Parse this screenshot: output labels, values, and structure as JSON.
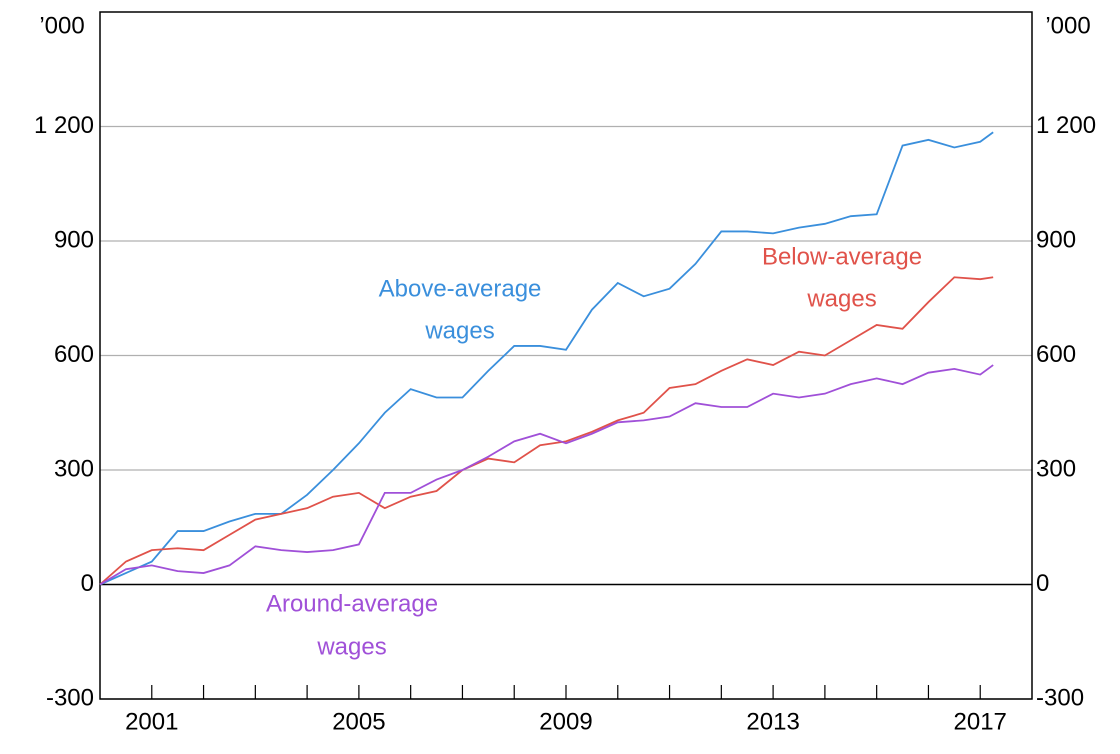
{
  "chart_data": {
    "type": "line",
    "y_unit_label": "’000",
    "y2_unit_label": "’000",
    "x": [
      2000.0,
      2000.5,
      2001.0,
      2001.5,
      2002.0,
      2002.5,
      2003.0,
      2003.5,
      2004.0,
      2004.5,
      2005.0,
      2005.5,
      2006.0,
      2006.5,
      2007.0,
      2007.5,
      2008.0,
      2008.5,
      2009.0,
      2009.5,
      2010.0,
      2010.5,
      2011.0,
      2011.5,
      2012.0,
      2012.5,
      2013.0,
      2013.5,
      2014.0,
      2014.5,
      2015.0,
      2015.5,
      2016.0,
      2016.5,
      2017.0,
      2017.25
    ],
    "xlim": [
      2000,
      2018
    ],
    "xticks": [
      2001,
      2005,
      2009,
      2013,
      2017
    ],
    "xminorticks": [
      2001,
      2002,
      2003,
      2004,
      2005,
      2006,
      2007,
      2008,
      2009,
      2010,
      2011,
      2012,
      2013,
      2014,
      2015,
      2016,
      2017
    ],
    "ylim": [
      -300,
      1500
    ],
    "yticks": [
      -300,
      0,
      300,
      600,
      900,
      {
        "value": 1200,
        "label": "1 200"
      }
    ],
    "y2lim": [
      -300,
      1500
    ],
    "y2ticks": [
      -300,
      0,
      300,
      600,
      900,
      {
        "value": 1200,
        "label": "1 200"
      }
    ],
    "grid": true,
    "series": [
      {
        "name": [
          "Above-average",
          "wages"
        ],
        "color": "#3a8fdc",
        "values": [
          0,
          30,
          60,
          140,
          140,
          165,
          185,
          185,
          235,
          300,
          370,
          450,
          512,
          490,
          490,
          560,
          625,
          625,
          615,
          720,
          790,
          755,
          775,
          840,
          925,
          925,
          920,
          935,
          945,
          965,
          970,
          1150,
          1165,
          1145,
          1160,
          1185
        ]
      },
      {
        "name": [
          "Below-average",
          "wages"
        ],
        "color": "#e0524a",
        "values": [
          0,
          60,
          90,
          95,
          90,
          130,
          170,
          185,
          200,
          230,
          240,
          200,
          230,
          245,
          300,
          330,
          320,
          365,
          375,
          400,
          430,
          450,
          515,
          525,
          560,
          590,
          575,
          610,
          600,
          640,
          680,
          670,
          740,
          805,
          800,
          805
        ]
      },
      {
        "name": [
          "Around-average",
          "wages"
        ],
        "color": "#a050d8",
        "values": [
          0,
          40,
          50,
          35,
          30,
          50,
          100,
          90,
          85,
          90,
          105,
          240,
          240,
          275,
          300,
          335,
          375,
          395,
          370,
          395,
          425,
          430,
          440,
          475,
          465,
          465,
          500,
          490,
          500,
          525,
          540,
          525,
          555,
          565,
          550,
          575
        ]
      }
    ]
  }
}
